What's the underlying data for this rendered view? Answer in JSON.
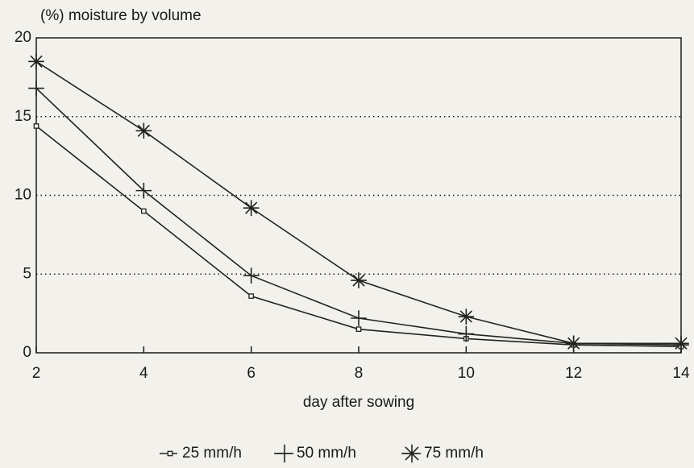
{
  "chart_data": {
    "type": "line",
    "title": "(%) moisture by volume",
    "x_label": "day after sowing",
    "x": [
      2,
      4,
      6,
      8,
      10,
      12,
      14
    ],
    "series": [
      {
        "name": "25 mm/h",
        "color": "#222222",
        "marker": "square",
        "values": [
          14.4,
          9.0,
          3.6,
          1.5,
          0.9,
          0.5,
          0.4
        ]
      },
      {
        "name": "50 mm/h",
        "color": "#222222",
        "marker": "plus",
        "values": [
          16.8,
          10.3,
          4.9,
          2.2,
          1.2,
          0.6,
          0.5
        ]
      },
      {
        "name": "75 mm/h",
        "color": "#222222",
        "marker": "asterisk",
        "values": [
          18.5,
          14.1,
          9.2,
          4.6,
          2.3,
          0.6,
          0.6
        ]
      }
    ],
    "xlim": [
      2,
      14
    ],
    "xticks": [
      2,
      4,
      6,
      8,
      10,
      12,
      14
    ],
    "ylim": [
      0,
      20
    ],
    "yticks": [
      0,
      5,
      10,
      15,
      20
    ],
    "grid": true,
    "legend": "bottom"
  }
}
